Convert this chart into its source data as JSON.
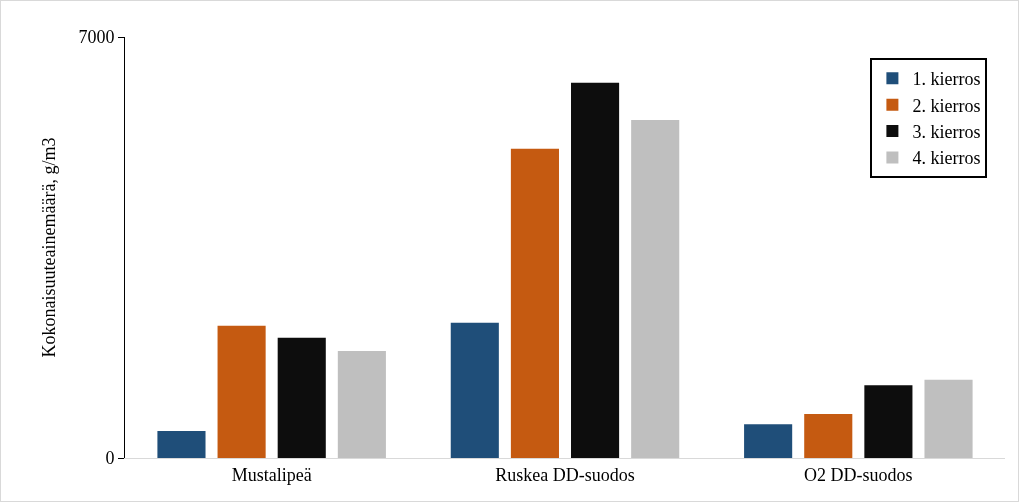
{
  "chart_data": {
    "type": "bar",
    "ylabel": "Kokonaisuuteainemäärä, g/m3",
    "categories": [
      "Mustalipeä",
      "Ruskea DD-suodos",
      "O2 DD-suodos"
    ],
    "series": [
      {
        "name": "1. kierros",
        "color": "#1f4e79",
        "values": [
          450,
          2250,
          560
        ]
      },
      {
        "name": "2. kierros",
        "color": "#c55a11",
        "values": [
          2200,
          5140,
          730
        ]
      },
      {
        "name": "3. kierros",
        "color": "#0d0d0d",
        "values": [
          2000,
          6240,
          1210
        ]
      },
      {
        "name": "4. kierros",
        "color": "#bfbfbf",
        "values": [
          1780,
          5620,
          1300
        ]
      }
    ],
    "ylim": [
      0,
      7000
    ],
    "yticks": [
      0,
      7000
    ],
    "legend": "top right"
  }
}
